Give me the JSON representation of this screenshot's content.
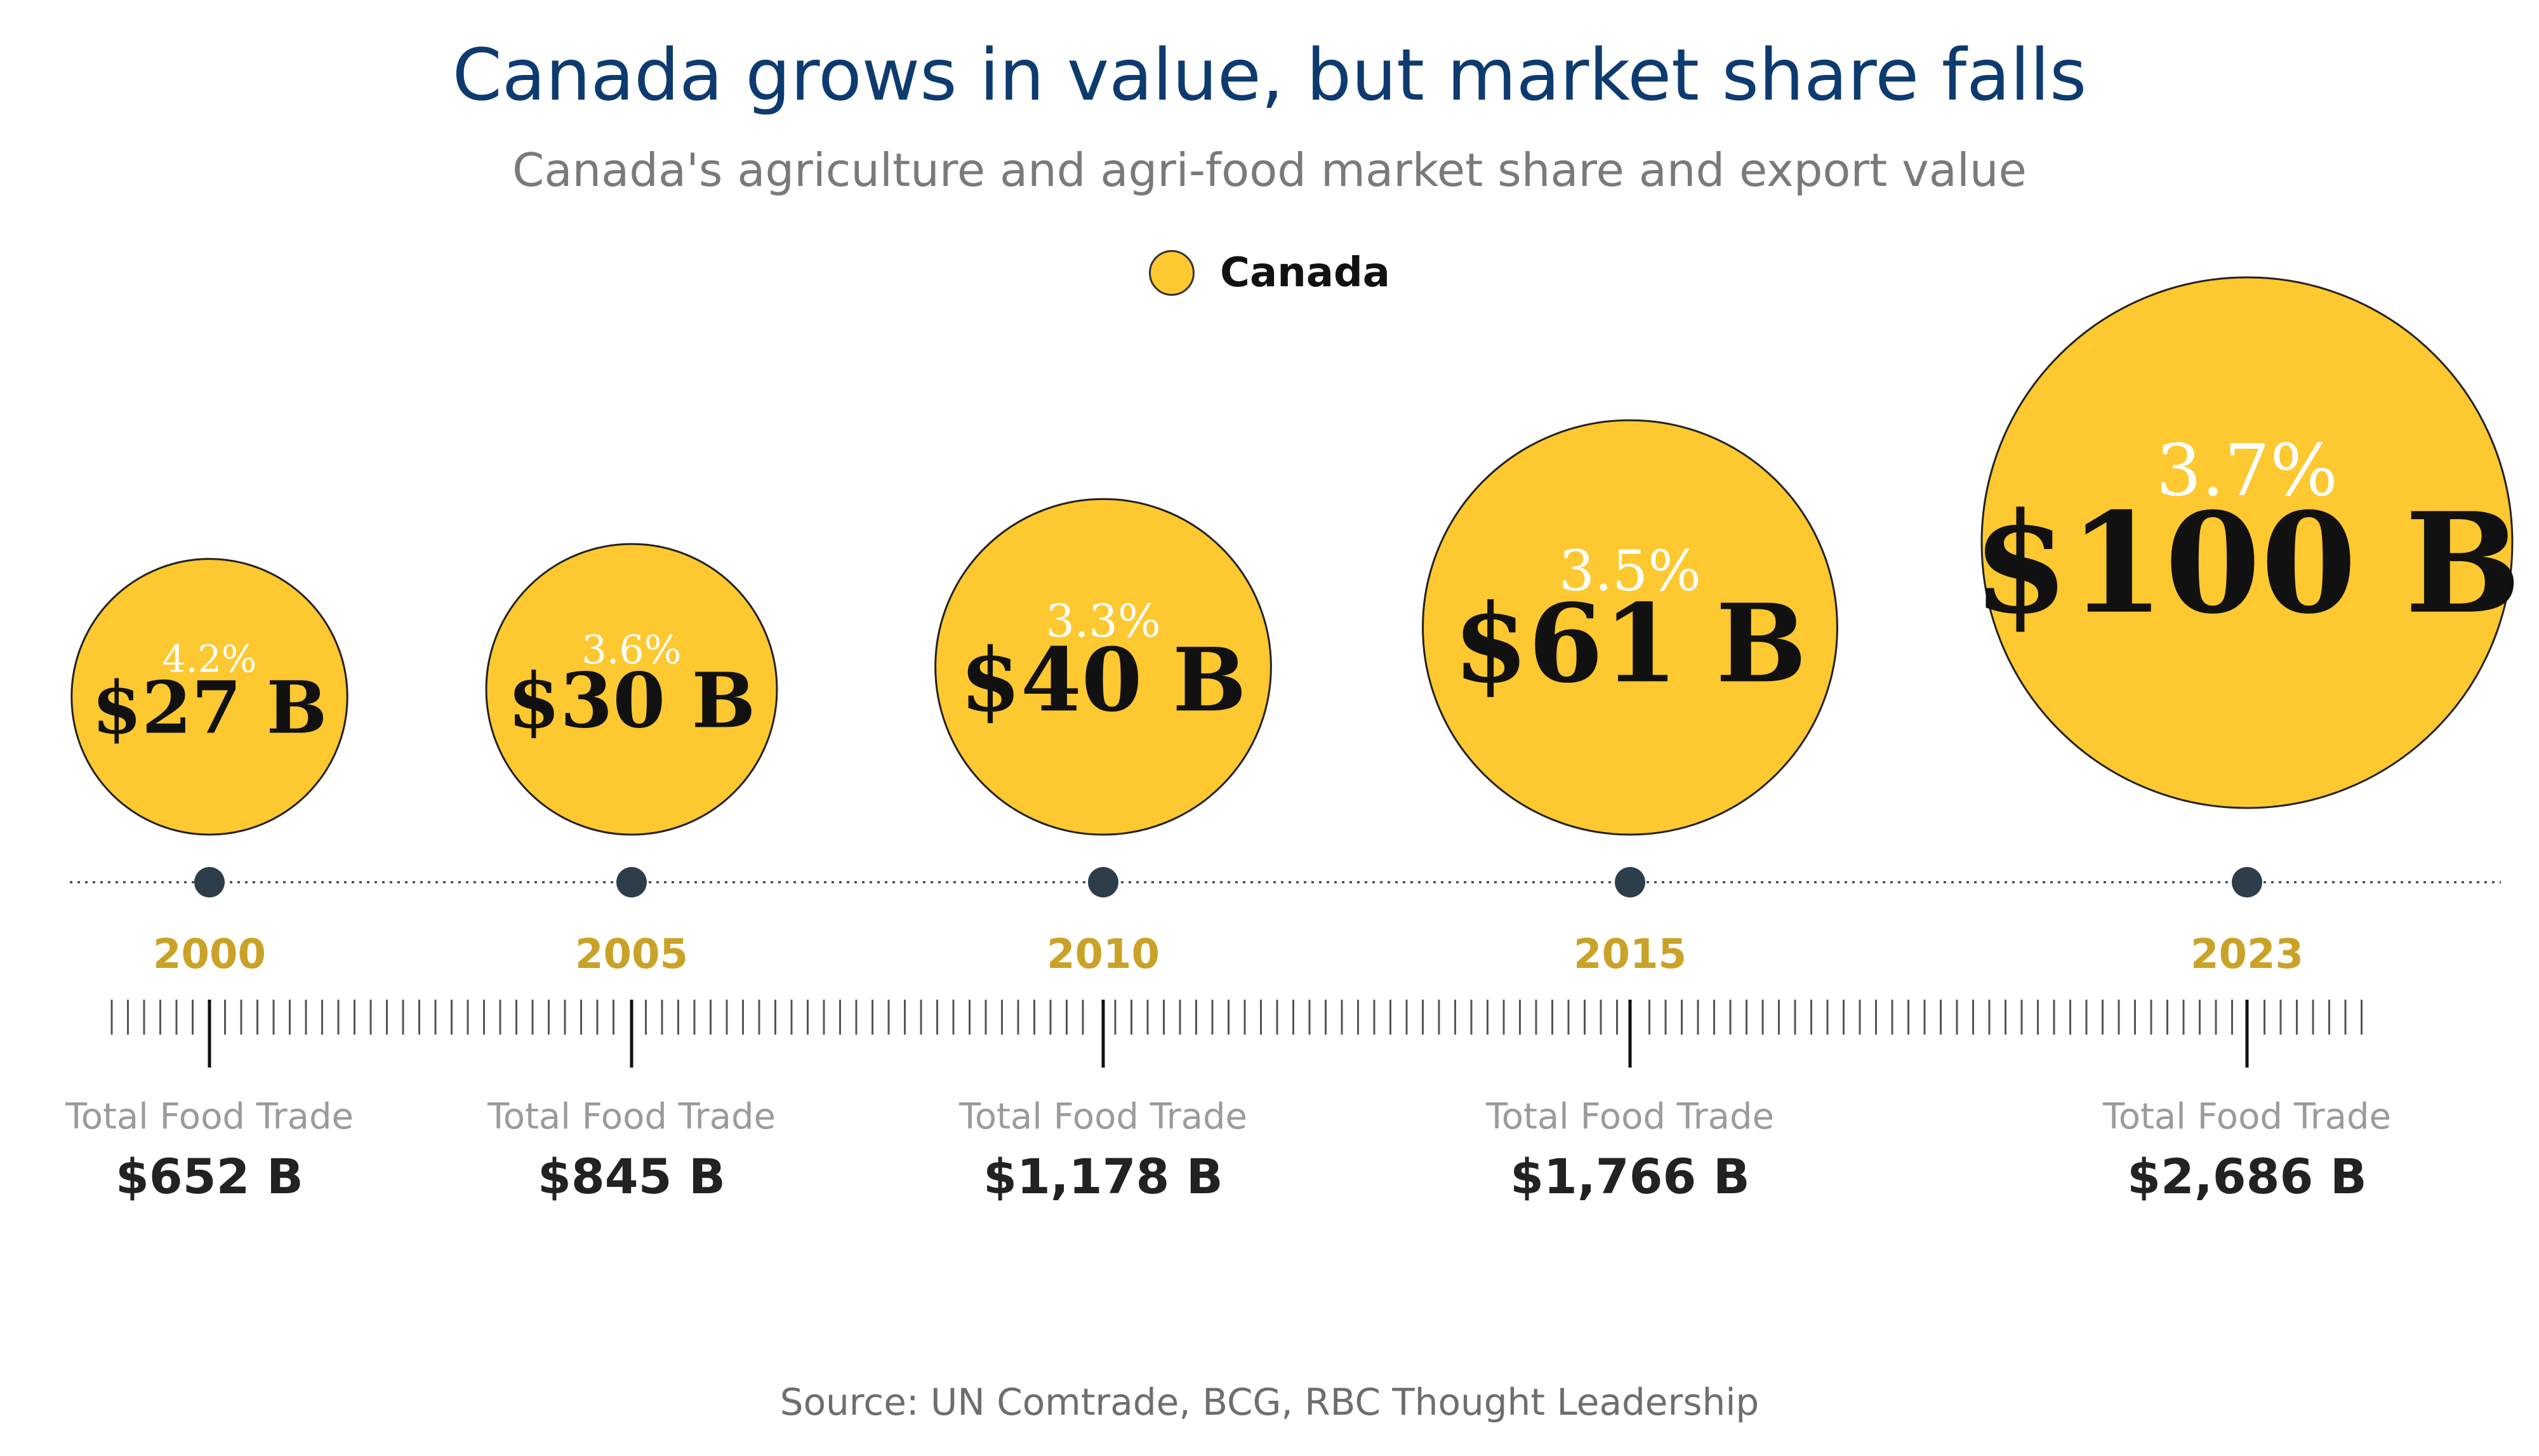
{
  "title": "Canada grows in value, but market share falls",
  "subtitle": "Canada's agriculture and agri-food market share and export value",
  "legend": {
    "label": "Canada",
    "color": "#fdc830"
  },
  "source": "Source: UN Comtrade, BCG, RBC Thought Leadership",
  "colors": {
    "bubble": "#fdc830",
    "bubble_stroke": "#222222",
    "share_text": "#ffffff",
    "value_text": "#111111",
    "year_text": "#c9a227",
    "timeline_dot": "#2d3e4a",
    "total_label": "#9b9b9b",
    "total_value": "#222222"
  },
  "chart_data": {
    "type": "bubble-timeline",
    "title": "Canada grows in value, but market share falls",
    "subtitle": "Canada's agriculture and agri-food market share and export value",
    "series_name": "Canada",
    "points": [
      {
        "year": "2000",
        "market_share": "4.2%",
        "export_value": 27,
        "export_label": "$27 B",
        "total_label": "Total Food Trade",
        "total_value": "$652 B"
      },
      {
        "year": "2005",
        "market_share": "3.6%",
        "export_value": 30,
        "export_label": "$30 B",
        "total_label": "Total Food Trade",
        "total_value": "$845 B"
      },
      {
        "year": "2010",
        "market_share": "3.3%",
        "export_value": 40,
        "export_label": "$40 B",
        "total_label": "Total Food Trade",
        "total_value": "$1,178 B"
      },
      {
        "year": "2015",
        "market_share": "3.5%",
        "export_value": 61,
        "export_label": "$61 B",
        "total_label": "Total Food Trade",
        "total_value": "$1,766 B"
      },
      {
        "year": "2023",
        "market_share": "3.7%",
        "export_value": 100,
        "export_label": "$100 B",
        "total_label": "Total Food Trade",
        "total_value": "$2,686 B"
      }
    ]
  }
}
